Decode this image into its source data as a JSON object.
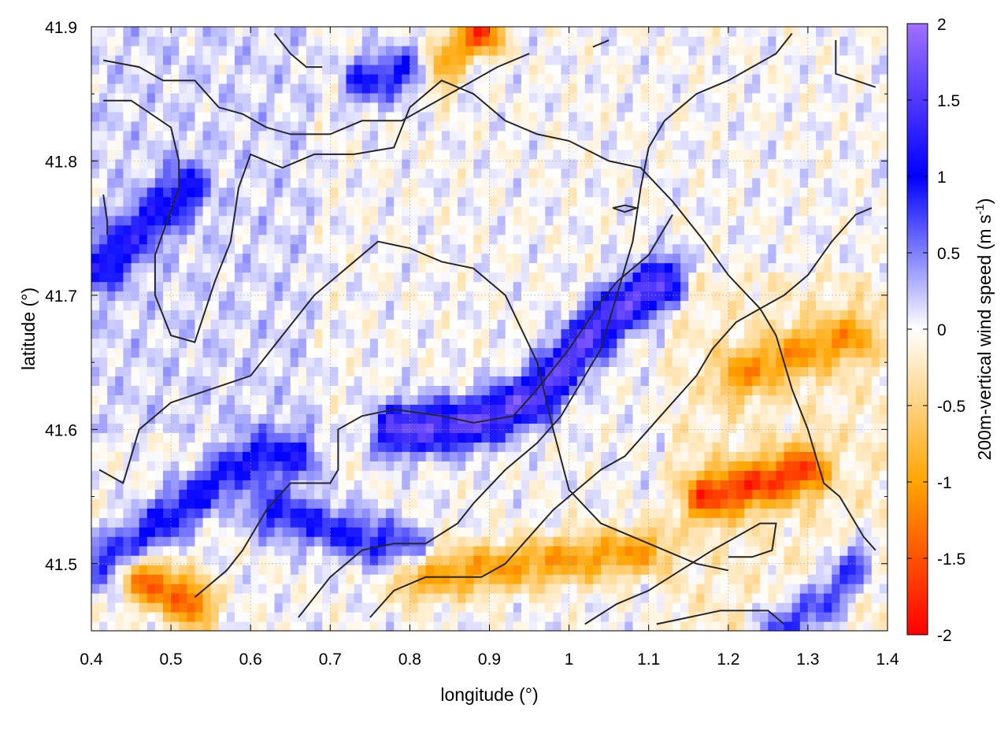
{
  "chart_data": {
    "type": "heatmap",
    "xlabel": "longitude (°)",
    "ylabel": "latitude (°)",
    "colorbar_label": "200m-vertical wind speed (m s",
    "colorbar_label_sup": "-1",
    "colorbar_label_end": ")",
    "xlim": [
      0.4,
      1.4
    ],
    "ylim": [
      41.45,
      41.9
    ],
    "x_ticks": [
      0.4,
      0.5,
      0.6,
      0.7,
      0.8,
      0.9,
      1.0,
      1.1,
      1.2,
      1.3,
      1.4
    ],
    "x_tick_labels": [
      "0.4",
      "0.5",
      "0.6",
      "0.7",
      "0.8",
      "0.9",
      "1",
      "1.1",
      "1.2",
      "1.3",
      "1.4"
    ],
    "y_ticks": [
      41.5,
      41.6,
      41.7,
      41.8,
      41.9
    ],
    "y_tick_labels": [
      "41.5",
      "41.6",
      "41.7",
      "41.8",
      "41.9"
    ],
    "colorbar_range": [
      -2,
      2
    ],
    "colorbar_ticks": [
      -2,
      -1.5,
      -1,
      -0.5,
      0,
      0.5,
      1,
      1.5,
      2
    ],
    "colorbar_tick_labels": [
      "-2",
      "-1.5",
      "-1",
      "-0.5",
      "0",
      "0.5",
      "1",
      "1.5",
      "2"
    ],
    "colormap": [
      {
        "value": -2.0,
        "color": "#ff0000"
      },
      {
        "value": -1.0,
        "color": "#ffa500"
      },
      {
        "value": 0.0,
        "color": "#ffffff"
      },
      {
        "value": 1.0,
        "color": "#0000ff"
      },
      {
        "value": 2.0,
        "color": "#a070ff"
      }
    ],
    "grid": true,
    "features": [
      {
        "name": "central updraft ridge",
        "value": 1.6,
        "points": [
          [
            0.78,
            41.6
          ],
          [
            0.88,
            41.605
          ],
          [
            0.96,
            41.625
          ],
          [
            1.01,
            41.66
          ],
          [
            1.06,
            41.69
          ],
          [
            1.12,
            41.71
          ]
        ]
      },
      {
        "name": "south-west band",
        "value": 1.0,
        "points": [
          [
            0.42,
            41.5
          ],
          [
            0.52,
            41.545
          ],
          [
            0.6,
            41.58
          ],
          [
            0.66,
            41.58
          ]
        ]
      },
      {
        "name": "west band",
        "value": 1.0,
        "points": [
          [
            0.41,
            41.72
          ],
          [
            0.48,
            41.76
          ],
          [
            0.52,
            41.78
          ]
        ]
      },
      {
        "name": "south-east band",
        "value": 0.9,
        "points": [
          [
            1.26,
            41.45
          ],
          [
            1.32,
            41.47
          ],
          [
            1.36,
            41.5
          ]
        ]
      },
      {
        "name": "lower band",
        "value": 0.9,
        "points": [
          [
            0.62,
            41.54
          ],
          [
            0.74,
            41.52
          ],
          [
            0.8,
            41.51
          ]
        ]
      },
      {
        "name": "upper band",
        "value": 0.9,
        "points": [
          [
            0.74,
            41.86
          ],
          [
            0.82,
            41.87
          ],
          [
            0.87,
            41.875
          ]
        ]
      },
      {
        "name": "south-west downdraft",
        "value": -1.4,
        "points": [
          [
            0.46,
            41.49
          ],
          [
            0.53,
            41.47
          ]
        ]
      },
      {
        "name": "south-east downdraft",
        "value": -1.5,
        "points": [
          [
            1.17,
            41.55
          ],
          [
            1.24,
            41.56
          ],
          [
            1.3,
            41.57
          ]
        ]
      },
      {
        "name": "east downdraft",
        "value": -0.9,
        "points": [
          [
            1.21,
            41.64
          ],
          [
            1.3,
            41.66
          ],
          [
            1.36,
            41.67
          ]
        ]
      },
      {
        "name": "top downdraft",
        "value": -1.8,
        "points": [
          [
            0.84,
            41.87
          ],
          [
            0.89,
            41.895
          ]
        ]
      },
      {
        "name": "south downdraft",
        "value": -1.0,
        "points": [
          [
            0.8,
            41.49
          ],
          [
            0.95,
            41.5
          ],
          [
            1.1,
            41.51
          ]
        ]
      }
    ],
    "contours": [
      {
        "points": [
          [
            0.415,
            41.845
          ],
          [
            0.45,
            41.845
          ],
          [
            0.5,
            41.825
          ],
          [
            0.51,
            41.8
          ],
          [
            0.51,
            41.78
          ],
          [
            0.48,
            41.73
          ],
          [
            0.48,
            41.7
          ],
          [
            0.5,
            41.67
          ],
          [
            0.53,
            41.665
          ],
          [
            0.555,
            41.71
          ],
          [
            0.575,
            41.74
          ],
          [
            0.585,
            41.78
          ],
          [
            0.6,
            41.805
          ],
          [
            0.64,
            41.795
          ],
          [
            0.68,
            41.805
          ],
          [
            0.73,
            41.805
          ],
          [
            0.78,
            41.81
          ],
          [
            0.8,
            41.84
          ],
          [
            0.84,
            41.86
          ],
          [
            0.88,
            41.85
          ],
          [
            0.92,
            41.83
          ],
          [
            0.96,
            41.82
          ],
          [
            1.0,
            41.815
          ],
          [
            1.05,
            41.8
          ],
          [
            1.09,
            41.795
          ],
          [
            1.13,
            41.77
          ],
          [
            1.17,
            41.74
          ],
          [
            1.2,
            41.715
          ],
          [
            1.24,
            41.69
          ],
          [
            1.26,
            41.67
          ],
          [
            1.28,
            41.63
          ],
          [
            1.3,
            41.6
          ],
          [
            1.32,
            41.56
          ],
          [
            1.34,
            41.55
          ],
          [
            1.37,
            41.52
          ],
          [
            1.385,
            41.51
          ]
        ]
      },
      {
        "points": [
          [
            0.415,
            41.875
          ],
          [
            0.46,
            41.87
          ],
          [
            0.49,
            41.86
          ],
          [
            0.53,
            41.86
          ],
          [
            0.56,
            41.84
          ],
          [
            0.59,
            41.835
          ],
          [
            0.62,
            41.825
          ],
          [
            0.65,
            41.82
          ],
          [
            0.7,
            41.82
          ],
          [
            0.74,
            41.83
          ],
          [
            0.77,
            41.83
          ],
          [
            0.79,
            41.83
          ],
          [
            0.82,
            41.84
          ],
          [
            0.85,
            41.85
          ],
          [
            0.88,
            41.86
          ],
          [
            0.91,
            41.87
          ],
          [
            0.95,
            41.88
          ]
        ]
      },
      {
        "points": [
          [
            0.41,
            41.57
          ],
          [
            0.44,
            41.56
          ],
          [
            0.46,
            41.6
          ],
          [
            0.5,
            41.62
          ],
          [
            0.55,
            41.63
          ],
          [
            0.6,
            41.64
          ],
          [
            0.64,
            41.67
          ],
          [
            0.68,
            41.7
          ],
          [
            0.72,
            41.72
          ],
          [
            0.76,
            41.74
          ],
          [
            0.8,
            41.735
          ],
          [
            0.84,
            41.725
          ],
          [
            0.88,
            41.72
          ],
          [
            0.92,
            41.7
          ],
          [
            0.96,
            41.65
          ],
          [
            0.98,
            41.6
          ],
          [
            1.0,
            41.555
          ],
          [
            1.04,
            41.53
          ],
          [
            1.08,
            41.52
          ],
          [
            1.12,
            41.51
          ],
          [
            1.16,
            41.5
          ],
          [
            1.2,
            41.495
          ]
        ]
      },
      {
        "points": [
          [
            0.53,
            41.475
          ],
          [
            0.57,
            41.495
          ],
          [
            0.59,
            41.51
          ],
          [
            0.62,
            41.54
          ],
          [
            0.65,
            41.56
          ],
          [
            0.68,
            41.56
          ],
          [
            0.7,
            41.56
          ],
          [
            0.71,
            41.57
          ],
          [
            0.71,
            41.6
          ],
          [
            0.74,
            41.61
          ],
          [
            0.78,
            41.615
          ],
          [
            0.84,
            41.61
          ],
          [
            0.88,
            41.605
          ],
          [
            0.93,
            41.61
          ],
          [
            0.96,
            41.63
          ],
          [
            1.0,
            41.66
          ],
          [
            1.04,
            41.695
          ],
          [
            1.06,
            41.71
          ],
          [
            1.1,
            41.73
          ],
          [
            1.13,
            41.76
          ]
        ]
      },
      {
        "points": [
          [
            0.66,
            41.46
          ],
          [
            0.7,
            41.49
          ],
          [
            0.74,
            41.51
          ],
          [
            0.78,
            41.515
          ],
          [
            0.82,
            41.515
          ],
          [
            0.86,
            41.53
          ],
          [
            0.88,
            41.545
          ],
          [
            0.92,
            41.57
          ],
          [
            0.96,
            41.59
          ],
          [
            0.99,
            41.61
          ],
          [
            1.02,
            41.64
          ],
          [
            1.04,
            41.66
          ],
          [
            1.06,
            41.7
          ],
          [
            1.08,
            41.74
          ],
          [
            1.09,
            41.78
          ],
          [
            1.1,
            41.81
          ],
          [
            1.12,
            41.83
          ],
          [
            1.16,
            41.85
          ],
          [
            1.2,
            41.86
          ],
          [
            1.23,
            41.87
          ],
          [
            1.26,
            41.88
          ],
          [
            1.28,
            41.895
          ]
        ]
      },
      {
        "points": [
          [
            0.75,
            41.46
          ],
          [
            0.78,
            41.48
          ],
          [
            0.82,
            41.49
          ],
          [
            0.86,
            41.49
          ],
          [
            0.89,
            41.49
          ],
          [
            0.92,
            41.5
          ],
          [
            0.95,
            41.52
          ],
          [
            0.98,
            41.54
          ],
          [
            1.01,
            41.555
          ],
          [
            1.04,
            41.57
          ],
          [
            1.07,
            41.58
          ],
          [
            1.1,
            41.6
          ],
          [
            1.13,
            41.62
          ],
          [
            1.16,
            41.64
          ],
          [
            1.18,
            41.66
          ],
          [
            1.21,
            41.68
          ],
          [
            1.24,
            41.69
          ],
          [
            1.27,
            41.7
          ],
          [
            1.3,
            41.715
          ],
          [
            1.33,
            41.74
          ],
          [
            1.36,
            41.76
          ],
          [
            1.38,
            41.765
          ]
        ]
      },
      {
        "points": [
          [
            1.02,
            41.455
          ],
          [
            1.06,
            41.47
          ],
          [
            1.1,
            41.48
          ],
          [
            1.14,
            41.495
          ],
          [
            1.18,
            41.51
          ],
          [
            1.21,
            41.52
          ],
          [
            1.24,
            41.53
          ],
          [
            1.26,
            41.53
          ],
          [
            1.255,
            41.51
          ],
          [
            1.23,
            41.505
          ],
          [
            1.2,
            41.505
          ]
        ]
      },
      {
        "points": [
          [
            1.11,
            41.455
          ],
          [
            1.15,
            41.46
          ],
          [
            1.19,
            41.465
          ],
          [
            1.23,
            41.465
          ],
          [
            1.25,
            41.465
          ],
          [
            1.27,
            41.455
          ]
        ]
      },
      {
        "points": [
          [
            1.335,
            41.89
          ],
          [
            1.335,
            41.865
          ],
          [
            1.36,
            41.86
          ],
          [
            1.385,
            41.855
          ]
        ]
      },
      {
        "points": [
          [
            0.63,
            41.895
          ],
          [
            0.65,
            41.88
          ],
          [
            0.67,
            41.87
          ],
          [
            0.69,
            41.87
          ]
        ]
      },
      {
        "points": [
          [
            1.055,
            41.765
          ],
          [
            1.07,
            41.767
          ],
          [
            1.085,
            41.765
          ],
          [
            1.07,
            41.762
          ],
          [
            1.055,
            41.765
          ]
        ]
      },
      {
        "points": [
          [
            0.415,
            41.775
          ],
          [
            0.42,
            41.755
          ],
          [
            0.42,
            41.745
          ]
        ]
      },
      {
        "points": [
          [
            1.03,
            41.885
          ],
          [
            1.05,
            41.89
          ]
        ]
      }
    ]
  }
}
